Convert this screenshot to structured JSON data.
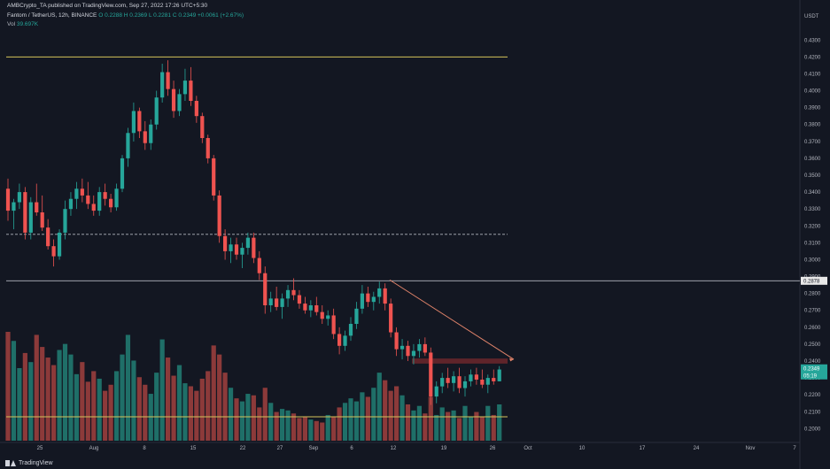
{
  "header": {
    "published": "AMBCrypto_TA published on TradingView.com, Sep 27, 2022 17:26 UTC+5:30",
    "symbol": "Fantom / TetherUS, 12h, BINANCE",
    "ohlc": "O 0.2288 H 0.2369 L 0.2281 C 0.2349 +0.0061 (+2.67%)",
    "vol_label": "Vol",
    "vol_value": "39.697K"
  },
  "brand": "TradingView",
  "colors": {
    "up": "#26a69a",
    "down": "#ef5350",
    "background": "#131722",
    "resistance_line": "#d4c45a",
    "volume_line": "#d4c45a",
    "trendline": "#e0836a",
    "supply_zone": "#7a2a2e",
    "price_badge": "#26a69a"
  },
  "chart_data": {
    "type": "candlestick",
    "title": "Fantom / TetherUS",
    "interval": "12h",
    "exchange": "BINANCE",
    "quote_axis_label": "USDT",
    "y_ticks": [
      "0.4300",
      "0.4200",
      "0.4100",
      "0.4000",
      "0.3900",
      "0.3800",
      "0.3700",
      "0.3600",
      "0.3500",
      "0.3400",
      "0.3300",
      "0.3200",
      "0.3100",
      "0.3000",
      "0.2900",
      "0.2800",
      "0.2700",
      "0.2600",
      "0.2500",
      "0.2400",
      "0.2300",
      "0.2200",
      "0.2100",
      "0.2000"
    ],
    "ylim": [
      0.196,
      0.438
    ],
    "x_ticks": [
      "25",
      "Aug",
      "8",
      "15",
      "22",
      "27",
      "Sep",
      "6",
      "12",
      "19",
      "26",
      "Oct",
      "10",
      "17",
      "24",
      "Nov",
      "7"
    ],
    "price_labels": {
      "last": "0.2349",
      "countdown": "05:19",
      "level": "0.2878"
    },
    "levels": {
      "resistance": 0.42,
      "midline": 0.315,
      "support": 0.2875,
      "supply_zone": [
        0.2385,
        0.2415
      ]
    },
    "trendline": {
      "from": [
        "Sep 12",
        0.288
      ],
      "to": [
        "Sep 27",
        0.241
      ]
    },
    "candles": [
      [
        0.342,
        0.348,
        0.323,
        0.329
      ],
      [
        0.329,
        0.336,
        0.318,
        0.334
      ],
      [
        0.334,
        0.345,
        0.33,
        0.34
      ],
      [
        0.34,
        0.343,
        0.312,
        0.316
      ],
      [
        0.316,
        0.337,
        0.312,
        0.334
      ],
      [
        0.334,
        0.345,
        0.326,
        0.328
      ],
      [
        0.328,
        0.338,
        0.317,
        0.319
      ],
      [
        0.319,
        0.324,
        0.306,
        0.308
      ],
      [
        0.308,
        0.312,
        0.296,
        0.302
      ],
      [
        0.302,
        0.318,
        0.3,
        0.316
      ],
      [
        0.316,
        0.335,
        0.312,
        0.33
      ],
      [
        0.33,
        0.34,
        0.326,
        0.336
      ],
      [
        0.336,
        0.346,
        0.33,
        0.342
      ],
      [
        0.342,
        0.348,
        0.334,
        0.338
      ],
      [
        0.338,
        0.346,
        0.33,
        0.333
      ],
      [
        0.333,
        0.338,
        0.326,
        0.329
      ],
      [
        0.329,
        0.343,
        0.326,
        0.34
      ],
      [
        0.34,
        0.345,
        0.332,
        0.336
      ],
      [
        0.336,
        0.339,
        0.328,
        0.331
      ],
      [
        0.331,
        0.345,
        0.329,
        0.342
      ],
      [
        0.342,
        0.362,
        0.34,
        0.36
      ],
      [
        0.36,
        0.378,
        0.355,
        0.375
      ],
      [
        0.375,
        0.393,
        0.37,
        0.388
      ],
      [
        0.388,
        0.39,
        0.372,
        0.376
      ],
      [
        0.376,
        0.382,
        0.365,
        0.369
      ],
      [
        0.369,
        0.383,
        0.365,
        0.38
      ],
      [
        0.38,
        0.4,
        0.377,
        0.396
      ],
      [
        0.396,
        0.416,
        0.393,
        0.411
      ],
      [
        0.411,
        0.418,
        0.397,
        0.401
      ],
      [
        0.401,
        0.406,
        0.384,
        0.388
      ],
      [
        0.388,
        0.401,
        0.385,
        0.398
      ],
      [
        0.398,
        0.413,
        0.394,
        0.406
      ],
      [
        0.406,
        0.414,
        0.391,
        0.394
      ],
      [
        0.394,
        0.397,
        0.381,
        0.385
      ],
      [
        0.385,
        0.387,
        0.369,
        0.372
      ],
      [
        0.372,
        0.374,
        0.357,
        0.36
      ],
      [
        0.36,
        0.362,
        0.335,
        0.338
      ],
      [
        0.338,
        0.341,
        0.31,
        0.314
      ],
      [
        0.314,
        0.318,
        0.3,
        0.305
      ],
      [
        0.305,
        0.313,
        0.298,
        0.309
      ],
      [
        0.309,
        0.313,
        0.3,
        0.303
      ],
      [
        0.303,
        0.31,
        0.295,
        0.307
      ],
      [
        0.307,
        0.316,
        0.303,
        0.313
      ],
      [
        0.313,
        0.316,
        0.298,
        0.301
      ],
      [
        0.301,
        0.305,
        0.288,
        0.292
      ],
      [
        0.292,
        0.296,
        0.268,
        0.273
      ],
      [
        0.273,
        0.281,
        0.269,
        0.277
      ],
      [
        0.277,
        0.284,
        0.27,
        0.272
      ],
      [
        0.272,
        0.28,
        0.265,
        0.277
      ],
      [
        0.277,
        0.285,
        0.272,
        0.282
      ],
      [
        0.282,
        0.289,
        0.276,
        0.279
      ],
      [
        0.279,
        0.282,
        0.271,
        0.274
      ],
      [
        0.274,
        0.278,
        0.268,
        0.27
      ],
      [
        0.27,
        0.276,
        0.266,
        0.273
      ],
      [
        0.273,
        0.278,
        0.267,
        0.269
      ],
      [
        0.269,
        0.273,
        0.262,
        0.265
      ],
      [
        0.265,
        0.27,
        0.261,
        0.267
      ],
      [
        0.267,
        0.271,
        0.253,
        0.256
      ],
      [
        0.256,
        0.26,
        0.244,
        0.249
      ],
      [
        0.249,
        0.258,
        0.246,
        0.255
      ],
      [
        0.255,
        0.266,
        0.252,
        0.262
      ],
      [
        0.262,
        0.275,
        0.259,
        0.271
      ],
      [
        0.271,
        0.285,
        0.268,
        0.28
      ],
      [
        0.28,
        0.284,
        0.272,
        0.275
      ],
      [
        0.275,
        0.281,
        0.27,
        0.278
      ],
      [
        0.278,
        0.287,
        0.274,
        0.283
      ],
      [
        0.283,
        0.286,
        0.27,
        0.274
      ],
      [
        0.274,
        0.277,
        0.254,
        0.257
      ],
      [
        0.257,
        0.26,
        0.243,
        0.247
      ],
      [
        0.247,
        0.253,
        0.241,
        0.249
      ],
      [
        0.249,
        0.252,
        0.24,
        0.243
      ],
      [
        0.243,
        0.25,
        0.238,
        0.246
      ],
      [
        0.246,
        0.253,
        0.242,
        0.25
      ],
      [
        0.25,
        0.254,
        0.243,
        0.245
      ],
      [
        0.245,
        0.248,
        0.214,
        0.219
      ],
      [
        0.219,
        0.228,
        0.215,
        0.225
      ],
      [
        0.225,
        0.233,
        0.221,
        0.23
      ],
      [
        0.23,
        0.236,
        0.224,
        0.227
      ],
      [
        0.227,
        0.234,
        0.222,
        0.231
      ],
      [
        0.231,
        0.236,
        0.221,
        0.224
      ],
      [
        0.224,
        0.231,
        0.219,
        0.228
      ],
      [
        0.228,
        0.235,
        0.225,
        0.232
      ],
      [
        0.232,
        0.236,
        0.226,
        0.229
      ],
      [
        0.229,
        0.235,
        0.224,
        0.226
      ],
      [
        0.226,
        0.232,
        0.221,
        0.23
      ],
      [
        0.23,
        0.235,
        0.226,
        0.228
      ],
      [
        0.228,
        0.237,
        0.228,
        0.235
      ]
    ],
    "volume": [
      0.72,
      0.66,
      0.48,
      0.58,
      0.52,
      0.7,
      0.62,
      0.55,
      0.5,
      0.6,
      0.64,
      0.57,
      0.44,
      0.52,
      0.39,
      0.46,
      0.41,
      0.33,
      0.37,
      0.46,
      0.57,
      0.7,
      0.53,
      0.42,
      0.37,
      0.31,
      0.45,
      0.67,
      0.55,
      0.43,
      0.5,
      0.38,
      0.36,
      0.33,
      0.41,
      0.46,
      0.63,
      0.57,
      0.45,
      0.35,
      0.28,
      0.26,
      0.31,
      0.3,
      0.22,
      0.35,
      0.25,
      0.19,
      0.21,
      0.2,
      0.18,
      0.15,
      0.16,
      0.14,
      0.13,
      0.12,
      0.17,
      0.16,
      0.22,
      0.25,
      0.28,
      0.26,
      0.32,
      0.29,
      0.35,
      0.45,
      0.4,
      0.33,
      0.36,
      0.3,
      0.24,
      0.2,
      0.23,
      0.18,
      0.29,
      0.17,
      0.22,
      0.19,
      0.2,
      0.15,
      0.23,
      0.16,
      0.19,
      0.16,
      0.23,
      0.17,
      0.24
    ]
  }
}
